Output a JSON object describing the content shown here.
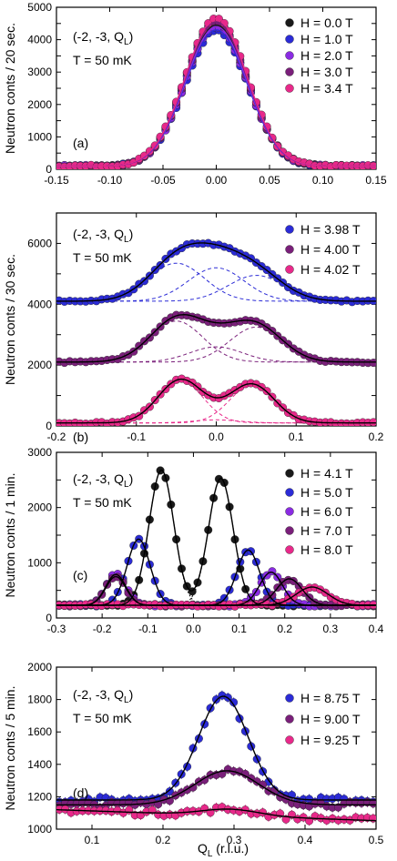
{
  "colors": {
    "black": "#1a1a1a",
    "blue": "#2b2bd6",
    "violet": "#8a2be2",
    "purple": "#7a1f7a",
    "pink": "#e8298a",
    "gray": "#7a7a7a"
  },
  "xlabel_main": "Q",
  "xlabel_sub": "L",
  "xlabel_unit": " (r.l.u.)",
  "chart_data": [
    {
      "id": "a",
      "type": "scatter",
      "panel_label": "(a)",
      "ann_line1_prefix": "(-2, -3, Q",
      "ann_line1_sub": "L",
      "ann_line1_suffix": ")",
      "ann_line2": "T = 50 mK",
      "ylabel": "Neutron conts / 20 sec.",
      "xlim": [
        -0.15,
        0.15
      ],
      "ylim": [
        0,
        5000
      ],
      "xticks": [
        -0.15,
        -0.1,
        -0.05,
        0.0,
        0.05,
        0.1,
        0.15
      ],
      "xtick_labels": [
        "-0.15",
        "-0.10",
        "-0.05",
        "0.00",
        "0.05",
        "0.10",
        "0.15"
      ],
      "yticks": [
        0,
        500,
        1000,
        1500,
        2000,
        2500,
        3000,
        3500,
        4000,
        4500,
        5000
      ],
      "ytick_labels": [
        "0",
        "",
        "1000",
        "",
        "2000",
        "",
        "3000",
        "",
        "4000",
        "",
        "5000"
      ],
      "series": [
        {
          "name": "H = 0.0 T",
          "color": "black",
          "bg": 100,
          "peaks": [
            [
              0.0,
              4350,
              0.029
            ]
          ]
        },
        {
          "name": "H = 1.0 T",
          "color": "blue",
          "bg": 100,
          "peaks": [
            [
              0.0,
              4200,
              0.029
            ]
          ]
        },
        {
          "name": "H = 2.0 T",
          "color": "violet",
          "bg": 100,
          "peaks": [
            [
              0.0,
              4300,
              0.029
            ]
          ]
        },
        {
          "name": "H = 3.0 T",
          "color": "purple",
          "bg": 100,
          "peaks": [
            [
              0.0,
              4450,
              0.029
            ]
          ]
        },
        {
          "name": "H = 3.4 T",
          "color": "pink",
          "bg": 100,
          "peaks": [
            [
              0.0,
              4550,
              0.029
            ]
          ]
        }
      ]
    },
    {
      "id": "b",
      "type": "scatter",
      "panel_label": "(b)",
      "ann_line1_prefix": "(-2, -3, Q",
      "ann_line1_sub": "L",
      "ann_line1_suffix": ")",
      "ann_line2": "T = 50 mK",
      "ylabel": "Neutron conts / 30 sec.",
      "xlim": [
        -0.2,
        0.2
      ],
      "ylim": [
        0,
        7000
      ],
      "xticks": [
        -0.2,
        -0.1,
        0.0,
        0.1,
        0.2
      ],
      "xtick_labels": [
        "-0.2",
        "-0.1",
        "0.0",
        "0.1",
        "0.2"
      ],
      "yticks": [
        0,
        1000,
        2000,
        3000,
        4000,
        5000,
        6000,
        7000
      ],
      "ytick_labels": [
        "0",
        "",
        "2000",
        "",
        "4000",
        "",
        "6000",
        ""
      ],
      "series": [
        {
          "name": "H = 3.98 T",
          "color": "blue",
          "bg": 4100,
          "peaks": [
            [
              -0.05,
              1250,
              0.035
            ],
            [
              0.0,
              1100,
              0.035
            ],
            [
              0.05,
              850,
              0.035
            ]
          ]
        },
        {
          "name": "H = 4.00 T",
          "color": "purple",
          "bg": 2100,
          "peaks": [
            [
              -0.05,
              1350,
              0.033
            ],
            [
              0.0,
              500,
              0.033
            ],
            [
              0.05,
              1150,
              0.033
            ]
          ]
        },
        {
          "name": "H = 4.02 T",
          "color": "pink",
          "bg": 100,
          "peaks": [
            [
              -0.045,
              1400,
              0.028
            ],
            [
              0.0,
              100,
              0.028
            ],
            [
              0.045,
              1250,
              0.028
            ]
          ]
        }
      ]
    },
    {
      "id": "c",
      "type": "scatter",
      "panel_label": "(c)",
      "ann_line1_prefix": "(-2, -3, Q",
      "ann_line1_sub": "L",
      "ann_line1_suffix": ")",
      "ann_line2": "T = 50 mK",
      "ylabel": "Neutron conts / 1 min.",
      "xlim": [
        -0.3,
        0.4
      ],
      "ylim": [
        0,
        3000
      ],
      "xticks": [
        -0.3,
        -0.2,
        -0.1,
        0.0,
        0.1,
        0.2,
        0.3,
        0.4
      ],
      "xtick_labels": [
        "-0.3",
        "-0.2",
        "-0.1",
        "0.0",
        "0.1",
        "0.2",
        "0.3",
        "0.4"
      ],
      "yticks": [
        0,
        500,
        1000,
        1500,
        2000,
        2500,
        3000
      ],
      "ytick_labels": [
        "0",
        "",
        "1000",
        "",
        "2000",
        "",
        "3000"
      ],
      "series": [
        {
          "name": "H = 4.1 T",
          "color": "black",
          "bg": 230,
          "peaks": [
            [
              -0.07,
              2450,
              0.027
            ],
            [
              0.06,
              2300,
              0.027
            ]
          ]
        },
        {
          "name": "H = 5.0 T",
          "color": "blue",
          "bg": 230,
          "peaks": [
            [
              -0.12,
              1200,
              0.025
            ],
            [
              0.12,
              1000,
              0.025
            ]
          ]
        },
        {
          "name": "H = 6.0 T",
          "color": "violet",
          "bg": 230,
          "peaks": [
            [
              -0.17,
              560,
              0.022
            ],
            [
              0.17,
              600,
              0.025
            ]
          ]
        },
        {
          "name": "H = 7.0 T",
          "color": "purple",
          "bg": 230,
          "peaks": [
            [
              -0.17,
              520,
              0.022
            ],
            [
              0.21,
              480,
              0.028
            ]
          ]
        },
        {
          "name": "H = 8.0 T",
          "color": "pink",
          "bg": 230,
          "peaks": [
            [
              0.26,
              330,
              0.035
            ]
          ]
        }
      ]
    },
    {
      "id": "d",
      "type": "scatter",
      "panel_label": "(d)",
      "ann_line1_prefix": "(-2, -3, Q",
      "ann_line1_sub": "L",
      "ann_line1_suffix": ")",
      "ann_line2": "T = 50 mK",
      "ylabel": "Neutron conts / 5 min.",
      "xlim": [
        0.05,
        0.5
      ],
      "ylim": [
        1000,
        2000
      ],
      "xticks": [
        0.1,
        0.2,
        0.3,
        0.4,
        0.5
      ],
      "xtick_labels": [
        "0.1",
        "0.2",
        "0.3",
        "0.4",
        "0.5"
      ],
      "yticks": [
        1000,
        1200,
        1400,
        1600,
        1800,
        2000
      ],
      "ytick_labels": [
        "1000",
        "1200",
        "1400",
        "1600",
        "1800",
        "2000"
      ],
      "series": [
        {
          "name": "H = 8.75 T",
          "color": "blue",
          "bg": 1180,
          "peaks": [
            [
              0.285,
              640,
              0.035
            ]
          ]
        },
        {
          "name": "H = 9.00 T",
          "color": "purple",
          "bg": 1150,
          "peaks": [
            [
              0.29,
              210,
              0.045
            ]
          ]
        },
        {
          "name": "H = 9.25 T",
          "color": "pink",
          "bg": 1120,
          "slope": -150,
          "peaks": [
            [
              0.295,
              40,
              0.04
            ]
          ]
        }
      ]
    }
  ]
}
